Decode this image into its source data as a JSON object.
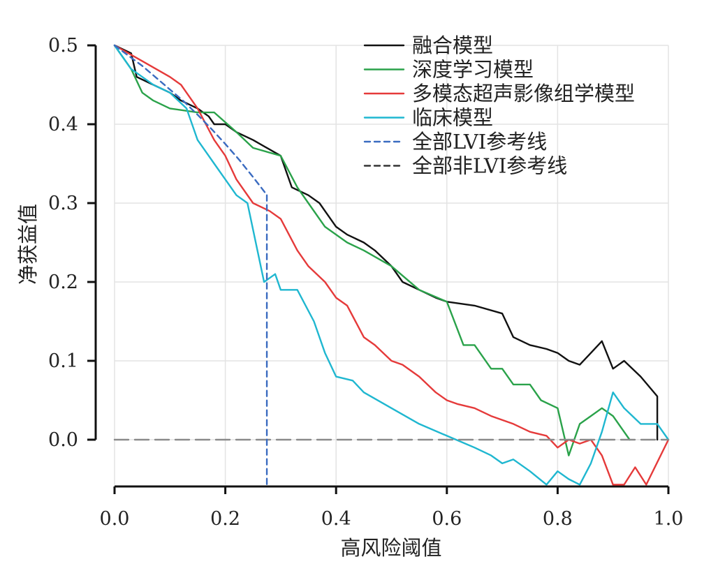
{
  "chart_data": {
    "type": "line",
    "title": "",
    "xlabel": "高风险阈值",
    "ylabel": "净获益值",
    "xlim": [
      0.0,
      1.0
    ],
    "ylim": [
      -0.057,
      0.5
    ],
    "xticks": [
      "0.0",
      "0.2",
      "0.4",
      "0.6",
      "0.8",
      "1.0"
    ],
    "yticks": [
      "0.0",
      "0.1",
      "0.2",
      "0.3",
      "0.4",
      "0.5"
    ],
    "grid": true,
    "legend_position": "top-right",
    "series": [
      {
        "name": "融合模型",
        "color": "#111111",
        "dash": "solid",
        "x": [
          0.0,
          0.03,
          0.04,
          0.07,
          0.1,
          0.12,
          0.15,
          0.17,
          0.18,
          0.2,
          0.22,
          0.25,
          0.3,
          0.32,
          0.35,
          0.37,
          0.38,
          0.4,
          0.42,
          0.45,
          0.47,
          0.5,
          0.52,
          0.55,
          0.58,
          0.6,
          0.65,
          0.7,
          0.72,
          0.75,
          0.78,
          0.8,
          0.82,
          0.84,
          0.86,
          0.88,
          0.9,
          0.92,
          0.95,
          0.98,
          0.98
        ],
        "y": [
          0.5,
          0.49,
          0.46,
          0.45,
          0.44,
          0.43,
          0.42,
          0.41,
          0.4,
          0.4,
          0.39,
          0.38,
          0.36,
          0.32,
          0.31,
          0.3,
          0.29,
          0.27,
          0.26,
          0.25,
          0.24,
          0.22,
          0.2,
          0.19,
          0.18,
          0.175,
          0.17,
          0.16,
          0.13,
          0.12,
          0.115,
          0.11,
          0.1,
          0.095,
          0.11,
          0.125,
          0.09,
          0.1,
          0.08,
          0.055,
          0.0
        ]
      },
      {
        "name": "深度学习模型",
        "color": "#2aa24a",
        "dash": "solid",
        "x": [
          0.0,
          0.03,
          0.05,
          0.07,
          0.1,
          0.15,
          0.18,
          0.22,
          0.25,
          0.3,
          0.33,
          0.35,
          0.38,
          0.42,
          0.45,
          0.5,
          0.55,
          0.6,
          0.63,
          0.65,
          0.68,
          0.7,
          0.72,
          0.75,
          0.77,
          0.8,
          0.82,
          0.84,
          0.86,
          0.88,
          0.9,
          0.93
        ],
        "y": [
          0.5,
          0.47,
          0.44,
          0.43,
          0.42,
          0.415,
          0.415,
          0.39,
          0.37,
          0.36,
          0.32,
          0.3,
          0.27,
          0.25,
          0.24,
          0.22,
          0.19,
          0.175,
          0.12,
          0.12,
          0.09,
          0.09,
          0.07,
          0.07,
          0.05,
          0.04,
          -0.02,
          0.02,
          0.03,
          0.04,
          0.03,
          0.0
        ]
      },
      {
        "name": "多模态超声影像组学模型",
        "color": "#e53a3a",
        "dash": "solid",
        "x": [
          0.0,
          0.05,
          0.1,
          0.12,
          0.15,
          0.18,
          0.2,
          0.22,
          0.25,
          0.28,
          0.3,
          0.33,
          0.35,
          0.38,
          0.4,
          0.42,
          0.45,
          0.47,
          0.5,
          0.52,
          0.55,
          0.58,
          0.6,
          0.62,
          0.65,
          0.68,
          0.7,
          0.72,
          0.75,
          0.78,
          0.8,
          0.82,
          0.84,
          0.86,
          0.88,
          0.9,
          0.92,
          0.94,
          0.96,
          1.0
        ],
        "y": [
          0.5,
          0.48,
          0.46,
          0.45,
          0.42,
          0.38,
          0.36,
          0.33,
          0.3,
          0.29,
          0.28,
          0.24,
          0.22,
          0.2,
          0.18,
          0.17,
          0.13,
          0.12,
          0.1,
          0.095,
          0.08,
          0.06,
          0.05,
          0.045,
          0.04,
          0.03,
          0.025,
          0.02,
          0.01,
          0.005,
          -0.01,
          0.0,
          -0.005,
          0.0,
          -0.02,
          -0.057,
          -0.057,
          -0.035,
          -0.057,
          0.0
        ]
      },
      {
        "name": "临床模型",
        "color": "#1fb7d0",
        "dash": "solid",
        "x": [
          0.0,
          0.03,
          0.05,
          0.07,
          0.1,
          0.13,
          0.15,
          0.17,
          0.18,
          0.2,
          0.22,
          0.24,
          0.27,
          0.29,
          0.3,
          0.33,
          0.36,
          0.38,
          0.4,
          0.43,
          0.45,
          0.5,
          0.55,
          0.6,
          0.65,
          0.68,
          0.7,
          0.72,
          0.75,
          0.78,
          0.8,
          0.82,
          0.84,
          0.86,
          0.88,
          0.9,
          0.92,
          0.95,
          0.98,
          1.0
        ],
        "y": [
          0.5,
          0.47,
          0.46,
          0.45,
          0.44,
          0.42,
          0.38,
          0.36,
          0.35,
          0.33,
          0.31,
          0.3,
          0.2,
          0.21,
          0.19,
          0.19,
          0.15,
          0.11,
          0.08,
          0.075,
          0.06,
          0.04,
          0.02,
          0.005,
          -0.01,
          -0.02,
          -0.03,
          -0.025,
          -0.04,
          -0.057,
          -0.04,
          -0.05,
          -0.057,
          -0.03,
          0.01,
          0.06,
          0.04,
          0.02,
          0.02,
          0.0
        ]
      },
      {
        "name": "全部LVI参考线",
        "color": "#3a6bc0",
        "dash": "dashed",
        "x": [
          0.0,
          0.025,
          0.05,
          0.075,
          0.1,
          0.125,
          0.15,
          0.175,
          0.2,
          0.225,
          0.25,
          0.26,
          0.27,
          0.275
        ],
        "y": [
          0.5,
          0.487,
          0.474,
          0.459,
          0.444,
          0.429,
          0.412,
          0.394,
          0.375,
          0.355,
          0.333,
          0.324,
          0.315,
          0.31
        ]
      },
      {
        "name": "全部非LVI参考线",
        "color": "#333333",
        "dash": "dashed",
        "x": [
          0.0,
          1.0
        ],
        "y": [
          0.0,
          0.0
        ]
      }
    ]
  }
}
